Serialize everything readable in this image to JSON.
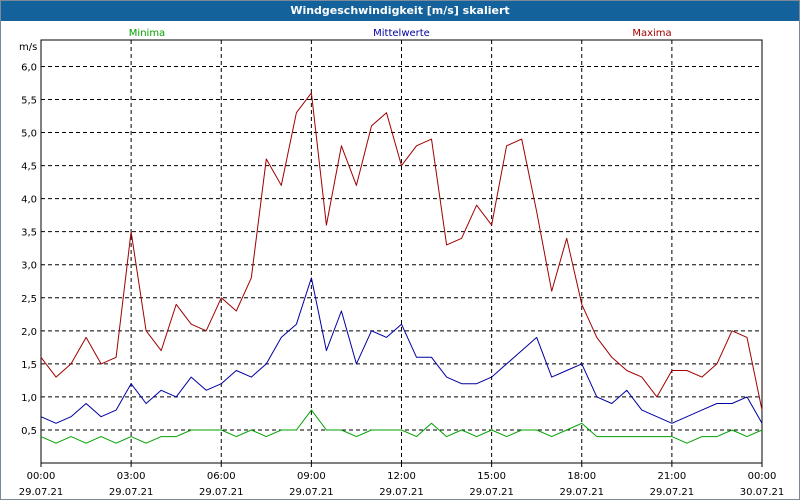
{
  "window": {
    "title": "Windgeschwindigkeit [m/s] skaliert"
  },
  "colors": {
    "titlebar": "#14629c",
    "minima": "#00a000",
    "mittelwerte": "#0000a0",
    "maxima": "#a00000",
    "grid": "#000000"
  },
  "chart_data": {
    "type": "line",
    "title": "Windgeschwindigkeit [m/s] skaliert",
    "ylabel": "m/s",
    "xlabel": "",
    "ylim": [
      0,
      6.4
    ],
    "xlim": [
      0,
      24
    ],
    "grid": true,
    "legend_placement": "top",
    "yticks": [
      0.5,
      1.0,
      1.5,
      2.0,
      2.5,
      3.0,
      3.5,
      4.0,
      4.5,
      5.0,
      5.5,
      6.0
    ],
    "ytick_labels": [
      "0,5",
      "1,0",
      "1,5",
      "2,0",
      "2,5",
      "3,0",
      "3,5",
      "4,0",
      "4,5",
      "5,0",
      "5,5",
      "6,0"
    ],
    "xticks": [
      0,
      3,
      6,
      9,
      12,
      15,
      18,
      21,
      24
    ],
    "xtick_labels": [
      [
        "00:00",
        "29.07.21"
      ],
      [
        "03:00",
        "29.07.21"
      ],
      [
        "06:00",
        "29.07.21"
      ],
      [
        "09:00",
        "29.07.21"
      ],
      [
        "12:00",
        "29.07.21"
      ],
      [
        "15:00",
        "29.07.21"
      ],
      [
        "18:00",
        "29.07.21"
      ],
      [
        "21:00",
        "29.07.21"
      ],
      [
        "00:00",
        "30.07.21"
      ]
    ],
    "series": [
      {
        "name": "Minima",
        "color": "#00a000",
        "x": [
          0,
          0.5,
          1,
          1.5,
          2,
          2.5,
          3,
          3.5,
          4,
          4.5,
          5,
          5.5,
          6,
          6.5,
          7,
          7.5,
          8,
          8.5,
          9,
          9.5,
          10,
          10.5,
          11,
          11.5,
          12,
          12.5,
          13,
          13.5,
          14,
          14.5,
          15,
          15.5,
          16,
          16.5,
          17,
          17.5,
          18,
          18.5,
          19,
          19.5,
          20,
          20.5,
          21,
          21.5,
          22,
          22.5,
          23,
          23.5,
          24
        ],
        "values": [
          0.4,
          0.3,
          0.4,
          0.3,
          0.4,
          0.3,
          0.4,
          0.3,
          0.4,
          0.4,
          0.5,
          0.5,
          0.5,
          0.4,
          0.5,
          0.4,
          0.5,
          0.5,
          0.8,
          0.5,
          0.5,
          0.4,
          0.5,
          0.5,
          0.5,
          0.4,
          0.6,
          0.4,
          0.5,
          0.4,
          0.5,
          0.4,
          0.5,
          0.5,
          0.4,
          0.5,
          0.6,
          0.4,
          0.4,
          0.4,
          0.4,
          0.4,
          0.4,
          0.3,
          0.4,
          0.4,
          0.5,
          0.4,
          0.5
        ]
      },
      {
        "name": "Mittelwerte",
        "color": "#0000a0",
        "x": [
          0,
          0.5,
          1,
          1.5,
          2,
          2.5,
          3,
          3.5,
          4,
          4.5,
          5,
          5.5,
          6,
          6.5,
          7,
          7.5,
          8,
          8.5,
          9,
          9.5,
          10,
          10.5,
          11,
          11.5,
          12,
          12.5,
          13,
          13.5,
          14,
          14.5,
          15,
          15.5,
          16,
          16.5,
          17,
          17.5,
          18,
          18.5,
          19,
          19.5,
          20,
          20.5,
          21,
          21.5,
          22,
          22.5,
          23,
          23.5,
          24
        ],
        "values": [
          0.7,
          0.6,
          0.7,
          0.9,
          0.7,
          0.8,
          1.2,
          0.9,
          1.1,
          1.0,
          1.3,
          1.1,
          1.2,
          1.4,
          1.3,
          1.5,
          1.9,
          2.1,
          2.8,
          1.7,
          2.3,
          1.5,
          2.0,
          1.9,
          2.1,
          1.6,
          1.6,
          1.3,
          1.2,
          1.2,
          1.3,
          1.5,
          1.7,
          1.9,
          1.3,
          1.4,
          1.5,
          1.0,
          0.9,
          1.1,
          0.8,
          0.7,
          0.6,
          0.7,
          0.8,
          0.9,
          0.9,
          1.0,
          0.6
        ]
      },
      {
        "name": "Maxima",
        "color": "#a00000",
        "x": [
          0,
          0.5,
          1,
          1.5,
          2,
          2.5,
          3,
          3.5,
          4,
          4.5,
          5,
          5.5,
          6,
          6.5,
          7,
          7.5,
          8,
          8.5,
          9,
          9.5,
          10,
          10.5,
          11,
          11.5,
          12,
          12.5,
          13,
          13.5,
          14,
          14.5,
          15,
          15.5,
          16,
          16.5,
          17,
          17.5,
          18,
          18.5,
          19,
          19.5,
          20,
          20.5,
          21,
          21.5,
          22,
          22.5,
          23,
          23.5,
          24
        ],
        "values": [
          1.6,
          1.3,
          1.5,
          1.9,
          1.5,
          1.6,
          3.5,
          2.0,
          1.7,
          2.4,
          2.1,
          2.0,
          2.5,
          2.3,
          2.8,
          4.6,
          4.2,
          5.3,
          5.6,
          3.6,
          4.8,
          4.2,
          5.1,
          5.3,
          4.5,
          4.8,
          4.9,
          3.3,
          3.4,
          3.9,
          3.6,
          4.8,
          4.9,
          3.8,
          2.6,
          3.4,
          2.4,
          1.9,
          1.6,
          1.4,
          1.3,
          1.0,
          1.4,
          1.4,
          1.3,
          1.5,
          2.0,
          1.9,
          0.8
        ]
      }
    ]
  }
}
